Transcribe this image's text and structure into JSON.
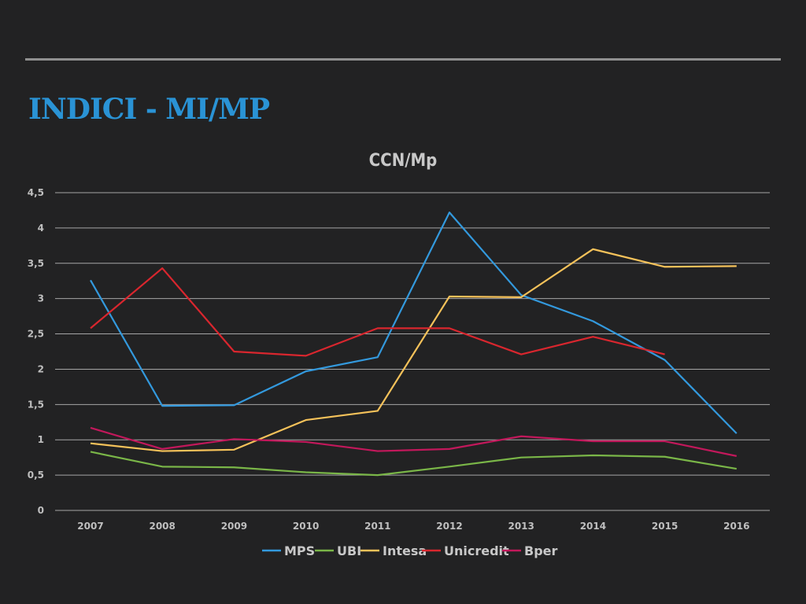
{
  "slide": {
    "title": "INDICI - MI/MP"
  },
  "chart_data": {
    "type": "line",
    "title": "CCN/Mp",
    "xlabel": "",
    "ylabel": "",
    "ylim": [
      0,
      4.5
    ],
    "yticks": [
      "0",
      "0,5",
      "1",
      "1,5",
      "2",
      "2,5",
      "3",
      "3,5",
      "4",
      "4,5"
    ],
    "ytick_values": [
      0,
      0.5,
      1,
      1.5,
      2,
      2.5,
      3,
      3.5,
      4,
      4.5
    ],
    "categories": [
      "2007",
      "2008",
      "2009",
      "2010",
      "2011",
      "2012",
      "2013",
      "2014",
      "2015",
      "2016"
    ],
    "grid": true,
    "legend_position": "bottom",
    "series": [
      {
        "name": "MPS",
        "color": "#3399dd",
        "values": [
          3.26,
          1.48,
          1.49,
          1.97,
          2.17,
          4.22,
          3.05,
          2.68,
          2.13,
          1.09
        ]
      },
      {
        "name": "UBI",
        "color": "#7ab648",
        "values": [
          0.83,
          0.62,
          0.61,
          0.54,
          0.5,
          0.62,
          0.75,
          0.78,
          0.76,
          0.59
        ]
      },
      {
        "name": "Intesa",
        "color": "#f5c25a",
        "values": [
          0.95,
          0.84,
          0.86,
          1.28,
          1.41,
          3.03,
          3.02,
          3.7,
          3.45,
          3.46
        ]
      },
      {
        "name": "Unicredit",
        "color": "#d9262e",
        "values": [
          2.58,
          3.43,
          2.25,
          2.19,
          2.58,
          2.58,
          2.21,
          2.46,
          2.21,
          null
        ]
      },
      {
        "name": "Bper",
        "color": "#c2185b",
        "values": [
          1.17,
          0.87,
          1.01,
          0.97,
          0.84,
          0.87,
          1.05,
          0.98,
          0.98,
          0.77
        ]
      }
    ]
  }
}
